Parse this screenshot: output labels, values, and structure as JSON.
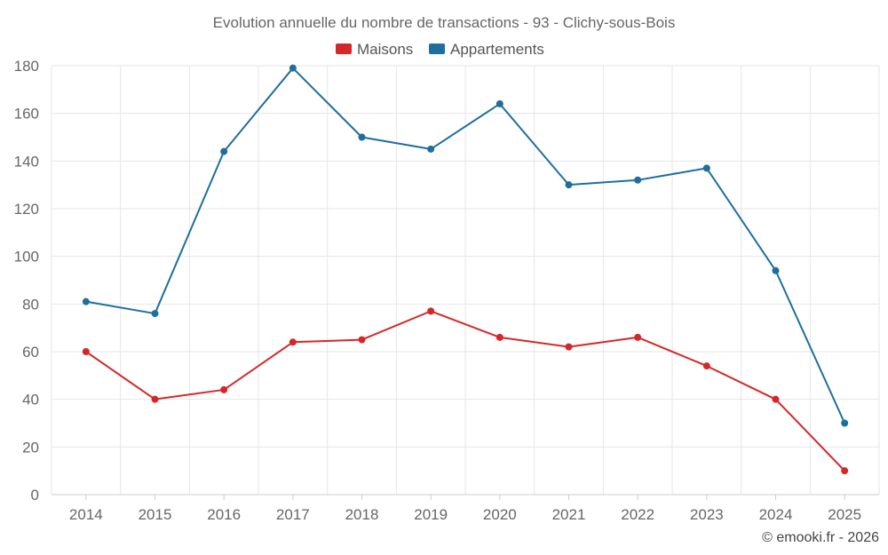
{
  "chart_data": {
    "type": "line",
    "title": "Evolution annuelle du nombre de transactions - 93 - Clichy-sous-Bois",
    "categories": [
      "2014",
      "2015",
      "2016",
      "2017",
      "2018",
      "2019",
      "2020",
      "2021",
      "2022",
      "2023",
      "2024",
      "2025"
    ],
    "series": [
      {
        "name": "Maisons",
        "color": "#d62728",
        "values": [
          60,
          40,
          44,
          64,
          65,
          77,
          66,
          62,
          66,
          54,
          40,
          10
        ]
      },
      {
        "name": "Appartements",
        "color": "#1f6e9e",
        "values": [
          81,
          76,
          144,
          179,
          150,
          145,
          164,
          130,
          132,
          137,
          94,
          30
        ]
      }
    ],
    "ylim": [
      0,
      180
    ],
    "yticks": [
      0,
      20,
      40,
      60,
      80,
      100,
      120,
      140,
      160,
      180
    ],
    "grid": true,
    "legend": "top-center",
    "xlabel": "",
    "ylabel": ""
  },
  "credit": "© emooki.fr - 2026"
}
